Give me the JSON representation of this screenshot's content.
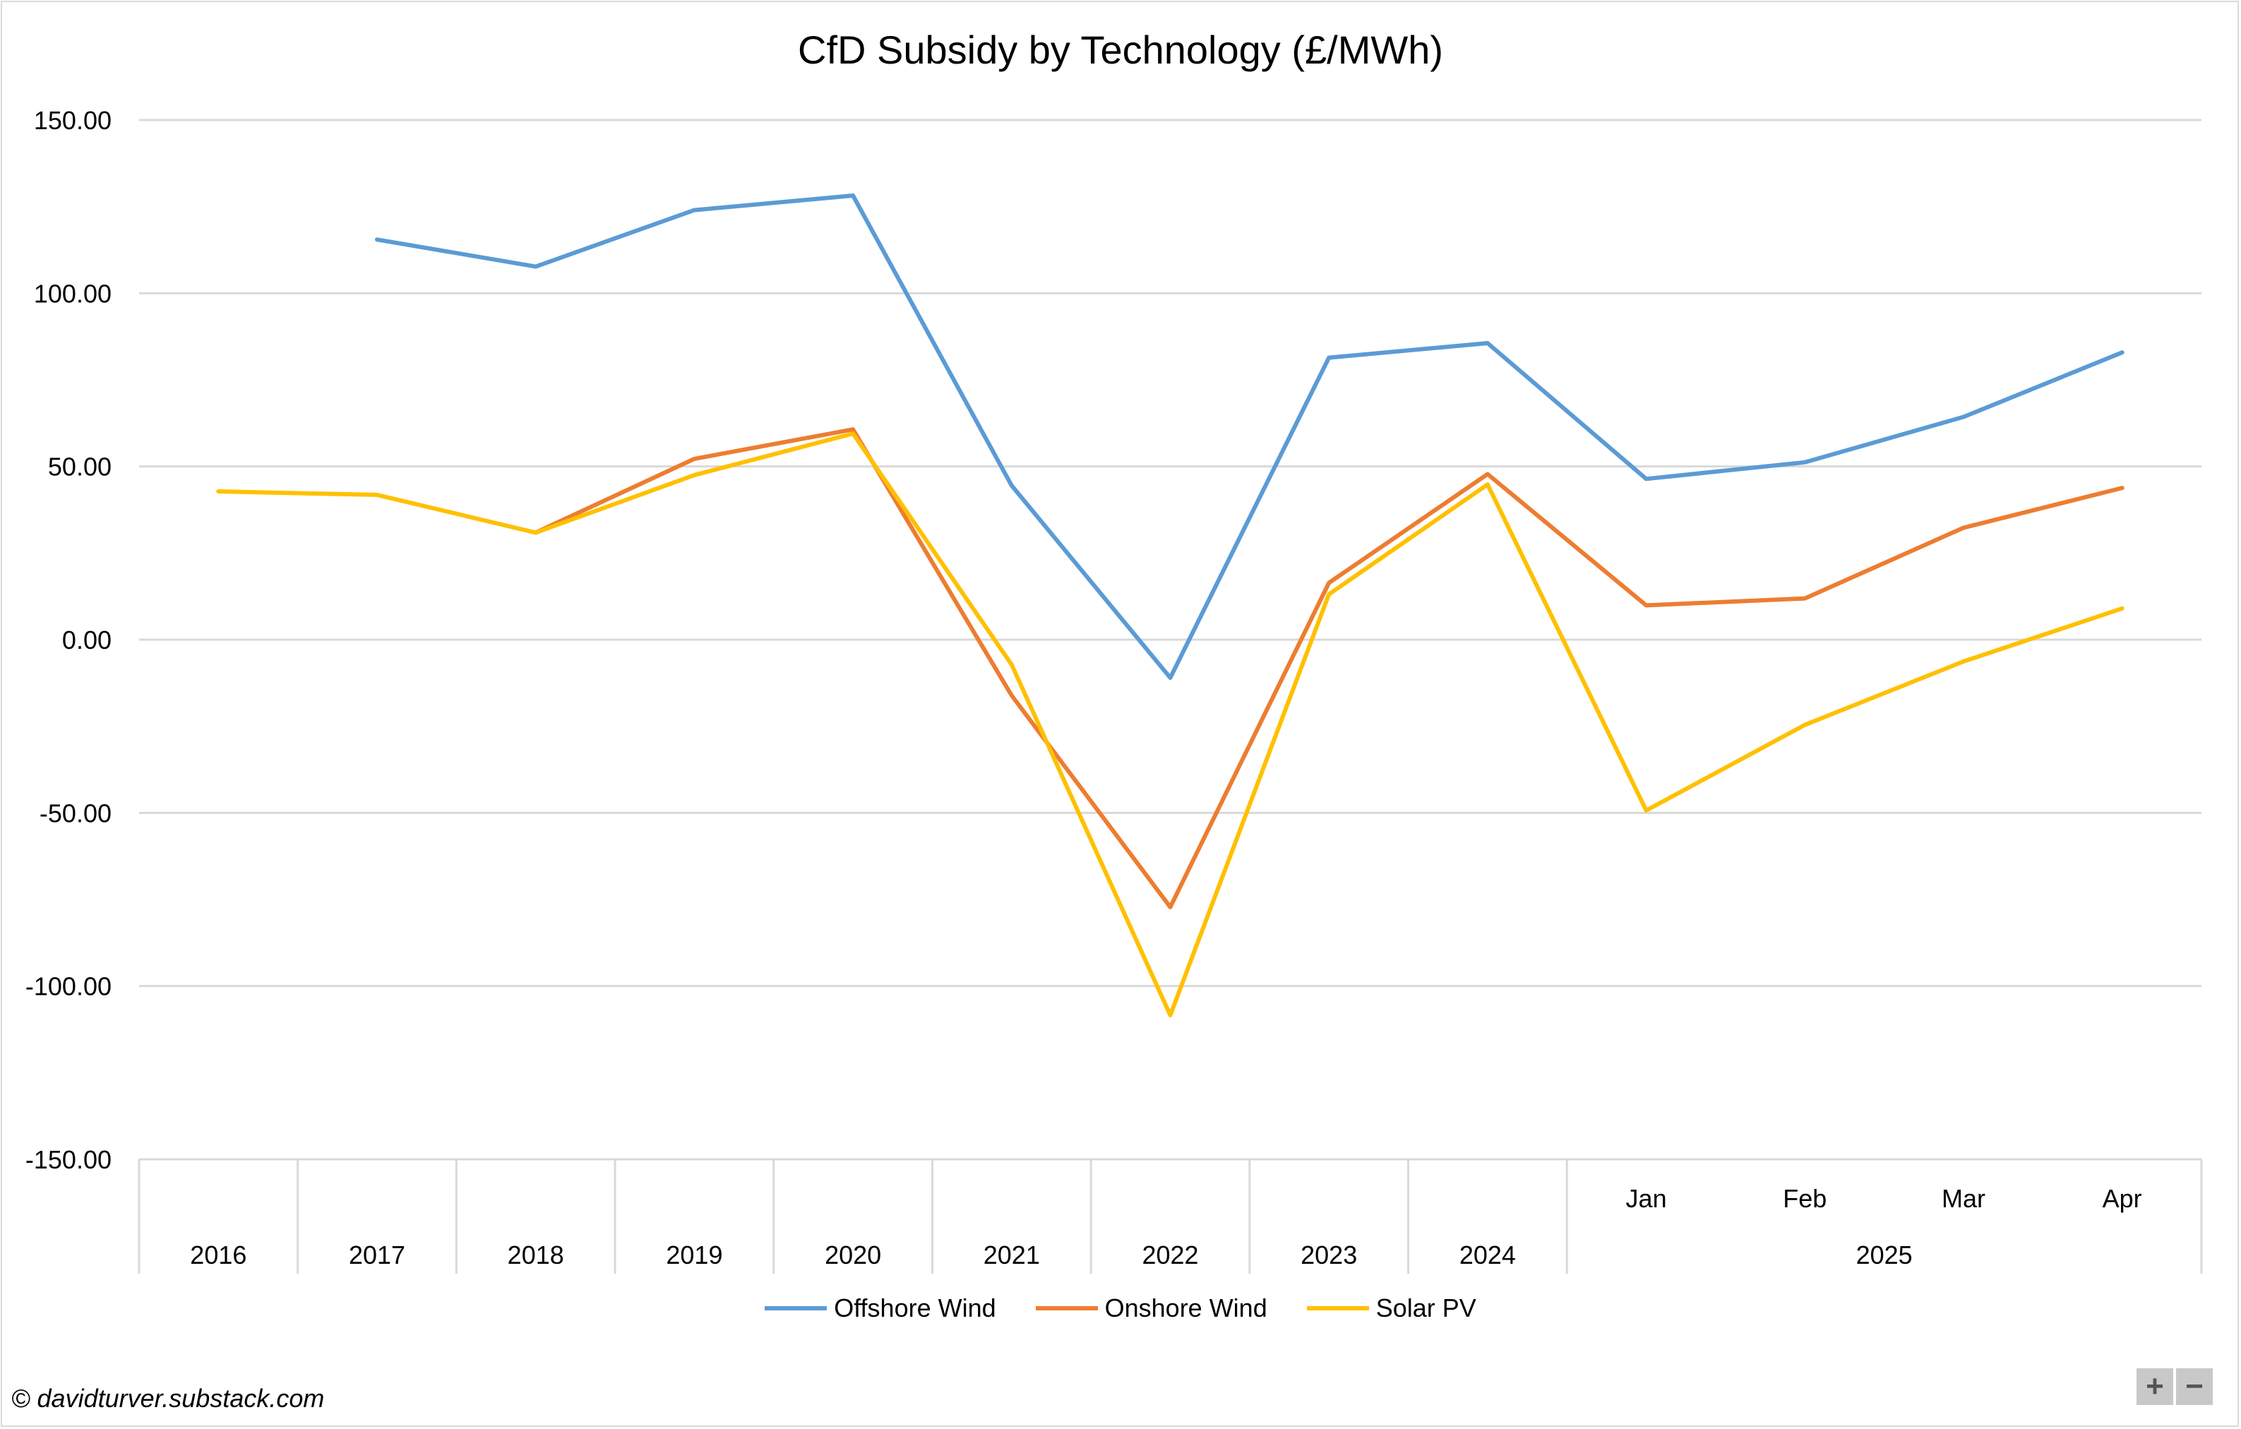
{
  "chart_data": {
    "type": "line",
    "title": "CfD Subsidy by Technology (£/MWh)",
    "xlabel": "",
    "ylabel": "",
    "ylim": [
      -150,
      150
    ],
    "yticks": [
      150,
      100,
      50,
      0,
      -50,
      -100,
      -150
    ],
    "yticklabels": [
      "150.00",
      "100.00",
      "50.00",
      "0.00",
      "-50.00",
      "-100.00",
      "-150.00"
    ],
    "grid": true,
    "legend_position": "bottom",
    "categories": [
      "2016",
      "2017",
      "2018",
      "2019",
      "2020",
      "2021",
      "2022",
      "2023",
      "2024",
      "Jan",
      "Feb",
      "Mar",
      "Apr"
    ],
    "category_groups": [
      {
        "label": "2025",
        "members": [
          "Jan",
          "Feb",
          "Mar",
          "Apr"
        ]
      }
    ],
    "series": [
      {
        "name": "Offshore Wind",
        "color": "#5b9bd5",
        "values": [
          null,
          115.5,
          107.7,
          124,
          128.2,
          44.5,
          -11,
          81.4,
          85.6,
          46.4,
          51.2,
          64.3,
          82.9
        ]
      },
      {
        "name": "Onshore Wind",
        "color": "#ed7d31",
        "values": [
          null,
          null,
          30.9,
          52.2,
          60.7,
          -16.1,
          -77.2,
          16.4,
          47.8,
          9.9,
          11.9,
          32.3,
          43.8
        ]
      },
      {
        "name": "Solar PV",
        "color": "#ffc000",
        "values": [
          42.8,
          41.8,
          30.9,
          47.5,
          59.5,
          -7.2,
          -108.4,
          13.1,
          44.8,
          -49.3,
          -24.6,
          -6.3,
          9
        ]
      }
    ]
  },
  "footer": {
    "credit": "© davidturver.substack.com"
  },
  "zoom": {
    "plus": "+",
    "minus": "−"
  }
}
